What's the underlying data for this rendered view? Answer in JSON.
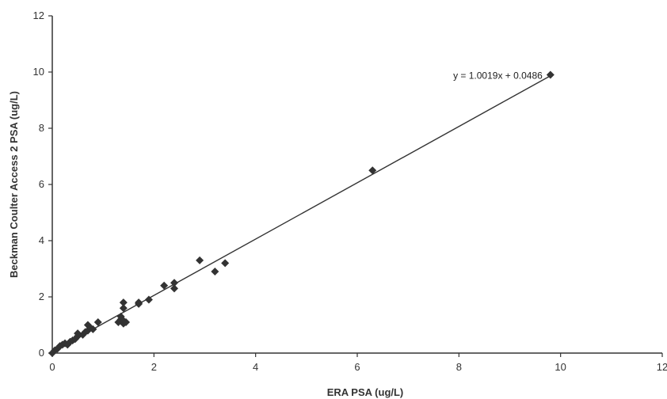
{
  "chart_data": {
    "type": "scatter",
    "title": "",
    "xlabel": "ERA PSA (ug/L)",
    "ylabel": "Beckman Coulter Access 2 PSA (ug/L)",
    "xlim": [
      0,
      12
    ],
    "ylim": [
      0,
      12
    ],
    "xticks": [
      0,
      2,
      4,
      6,
      8,
      10,
      12
    ],
    "yticks": [
      0,
      2,
      4,
      6,
      8,
      10,
      12
    ],
    "xtick_labels": [
      "0",
      "2",
      "4",
      "6",
      "8",
      "10",
      "12"
    ],
    "ytick_labels": [
      "0",
      "2",
      "4",
      "6",
      "8",
      "10",
      "12"
    ],
    "grid": false,
    "legend": "none",
    "trendline": {
      "equation": "y = 1.0019x + 0.0486",
      "slope": 1.0019,
      "intercept": 0.0486,
      "x_range": [
        0,
        9.8
      ]
    },
    "marker_color": "#333333",
    "line_color": "#333333",
    "points": [
      {
        "x": 0.0,
        "y": 0.0
      },
      {
        "x": 0.05,
        "y": 0.1
      },
      {
        "x": 0.1,
        "y": 0.15
      },
      {
        "x": 0.15,
        "y": 0.25
      },
      {
        "x": 0.2,
        "y": 0.3
      },
      {
        "x": 0.25,
        "y": 0.35
      },
      {
        "x": 0.3,
        "y": 0.3
      },
      {
        "x": 0.35,
        "y": 0.4
      },
      {
        "x": 0.4,
        "y": 0.45
      },
      {
        "x": 0.45,
        "y": 0.5
      },
      {
        "x": 0.5,
        "y": 0.6
      },
      {
        "x": 0.5,
        "y": 0.7
      },
      {
        "x": 0.6,
        "y": 0.65
      },
      {
        "x": 0.65,
        "y": 0.75
      },
      {
        "x": 0.7,
        "y": 0.8
      },
      {
        "x": 0.7,
        "y": 1.0
      },
      {
        "x": 0.75,
        "y": 0.9
      },
      {
        "x": 0.8,
        "y": 0.85
      },
      {
        "x": 0.9,
        "y": 1.1
      },
      {
        "x": 1.3,
        "y": 1.1
      },
      {
        "x": 1.35,
        "y": 1.2
      },
      {
        "x": 1.35,
        "y": 1.3
      },
      {
        "x": 1.4,
        "y": 1.05
      },
      {
        "x": 1.4,
        "y": 1.15
      },
      {
        "x": 1.4,
        "y": 1.6
      },
      {
        "x": 1.4,
        "y": 1.8
      },
      {
        "x": 1.45,
        "y": 1.1
      },
      {
        "x": 1.7,
        "y": 1.75
      },
      {
        "x": 1.7,
        "y": 1.8
      },
      {
        "x": 1.9,
        "y": 1.9
      },
      {
        "x": 2.2,
        "y": 2.4
      },
      {
        "x": 2.4,
        "y": 2.3
      },
      {
        "x": 2.4,
        "y": 2.5
      },
      {
        "x": 2.9,
        "y": 3.3
      },
      {
        "x": 3.2,
        "y": 2.9
      },
      {
        "x": 3.4,
        "y": 3.2
      },
      {
        "x": 6.3,
        "y": 6.5
      },
      {
        "x": 9.8,
        "y": 9.9
      }
    ]
  }
}
